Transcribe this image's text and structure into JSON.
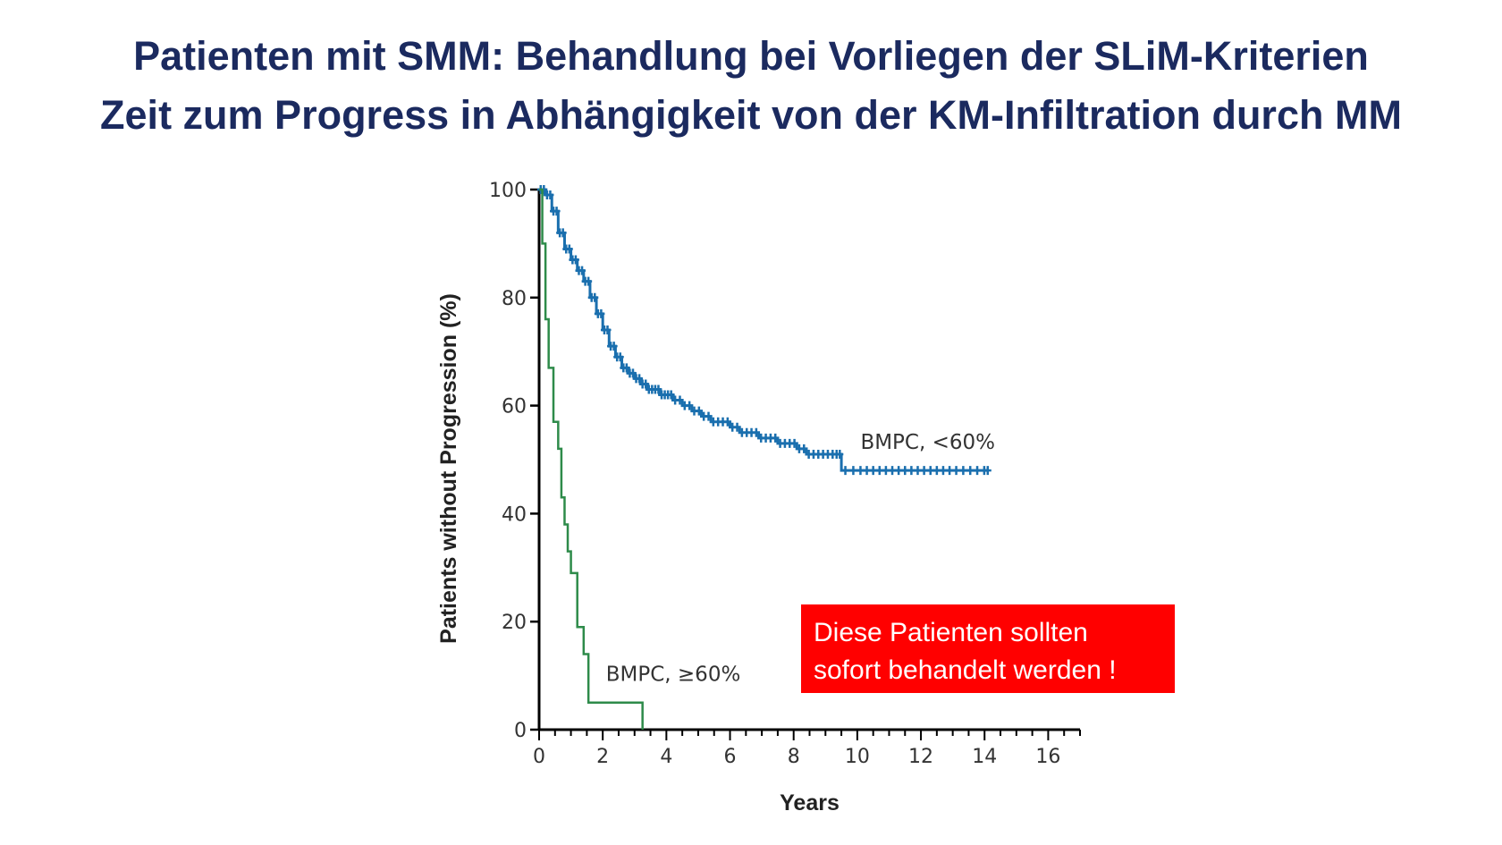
{
  "slide": {
    "title_line1": "Patienten mit SMM: Behandlung bei Vorliegen der SLiM-Kriterien",
    "title_line2": "Zeit zum Progress in Abhängigkeit von der KM-Infiltration durch MM",
    "callout_line1": "Diese Patienten sollten",
    "callout_line2": "sofort behandelt werden !",
    "callout_color": "#ff0000"
  },
  "chart_data": {
    "type": "line",
    "title": "",
    "xlabel": "Years",
    "ylabel": "Patients without Progression (%)",
    "xlim": [
      0,
      17
    ],
    "ylim": [
      0,
      100
    ],
    "xticks": [
      0,
      2,
      4,
      6,
      8,
      10,
      12,
      14,
      16
    ],
    "yticks": [
      0,
      20,
      40,
      60,
      80,
      100
    ],
    "grid": false,
    "series": [
      {
        "name": "BMPC, <60%",
        "color": "#1a6fae",
        "step": true,
        "x": [
          0,
          0.2,
          0.4,
          0.6,
          0.8,
          1.0,
          1.2,
          1.4,
          1.6,
          1.8,
          2.0,
          2.2,
          2.4,
          2.6,
          2.8,
          3.0,
          3.2,
          3.4,
          3.6,
          3.8,
          4.0,
          4.2,
          4.5,
          4.8,
          5.1,
          5.4,
          5.7,
          6.0,
          6.3,
          6.6,
          6.9,
          7.2,
          7.5,
          7.8,
          8.1,
          8.4,
          8.7,
          9.0,
          9.3,
          9.5,
          10.0,
          11.0,
          12.0,
          13.0,
          14.1
        ],
        "y": [
          100,
          99,
          96,
          92,
          89,
          87,
          85,
          83,
          80,
          77,
          74,
          71,
          69,
          67,
          66,
          65,
          64,
          63,
          63,
          62,
          62,
          61,
          60,
          59,
          58,
          57,
          57,
          56,
          55,
          55,
          54,
          54,
          53,
          53,
          52,
          51,
          51,
          51,
          51,
          48,
          48,
          48,
          48,
          48,
          48
        ]
      },
      {
        "name": "BMPC, ≥60%",
        "color": "#2e8b4a",
        "step": true,
        "x": [
          0,
          0.1,
          0.2,
          0.3,
          0.45,
          0.6,
          0.7,
          0.8,
          0.9,
          1.0,
          1.2,
          1.4,
          1.55,
          3.2,
          3.25
        ],
        "y": [
          100,
          90,
          76,
          67,
          57,
          52,
          43,
          38,
          33,
          29,
          19,
          14,
          5,
          5,
          0
        ]
      }
    ],
    "annotations": [
      {
        "text": "BMPC, <60%",
        "x": 10.1,
        "y": 52
      },
      {
        "text": "BMPC, ≥60%",
        "x": 2.1,
        "y": 9
      }
    ]
  }
}
